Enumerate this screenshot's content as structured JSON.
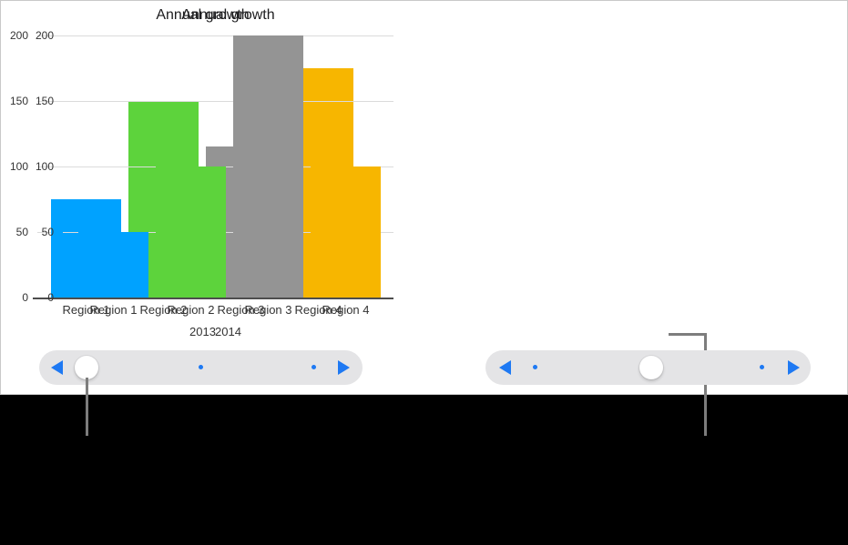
{
  "figure": {
    "background": "#000000",
    "screen_background": "#FFFFFF"
  },
  "chart_data": [
    {
      "type": "bar",
      "title": "Annual growth",
      "xlabel": "2013",
      "ylabel": "",
      "categories": [
        "Region 1",
        "Region 2",
        "Region 3",
        "Region 4"
      ],
      "values": [
        75,
        150,
        115,
        175
      ],
      "bar_colors": [
        "#00A2FF",
        "#5DD33C",
        "#949494",
        "#F7B600"
      ],
      "ylim": [
        0,
        200
      ],
      "y_ticks": [
        200,
        150,
        100,
        50,
        0
      ],
      "grid": true,
      "legend": false
    },
    {
      "type": "bar",
      "title": "Annual growth",
      "xlabel": "2014",
      "ylabel": "",
      "categories": [
        "Region 1",
        "Region 2",
        "Region 3",
        "Region 4"
      ],
      "values": [
        50,
        100,
        200,
        100
      ],
      "bar_colors": [
        "#00A2FF",
        "#5DD33C",
        "#949494",
        "#F7B600"
      ],
      "ylim": [
        0,
        200
      ],
      "y_ticks": [
        200,
        150,
        100,
        50,
        0
      ],
      "grid": true,
      "legend": false
    }
  ],
  "sliders": [
    {
      "label": "chart-1-pagination-slider",
      "back_icon": "back-arrow",
      "forward_icon": "forward-arrow",
      "pages": 3,
      "current_page": 1
    },
    {
      "label": "chart-2-pagination-slider",
      "back_icon": "back-arrow",
      "forward_icon": "forward-arrow",
      "pages": 3,
      "current_page": 2
    }
  ],
  "colors": {
    "slider_accent": "#1E79F3",
    "slider_track": "#E4E4E6",
    "slider_thumb": "#FFFFFF",
    "callout_line": "#7D7D7D",
    "gridline": "#DBDBDB",
    "axis_line": "#4D4D4D",
    "title_text": "#1C1C1E",
    "tick_text": "#333333",
    "screen_border": "#C9C9C9"
  }
}
